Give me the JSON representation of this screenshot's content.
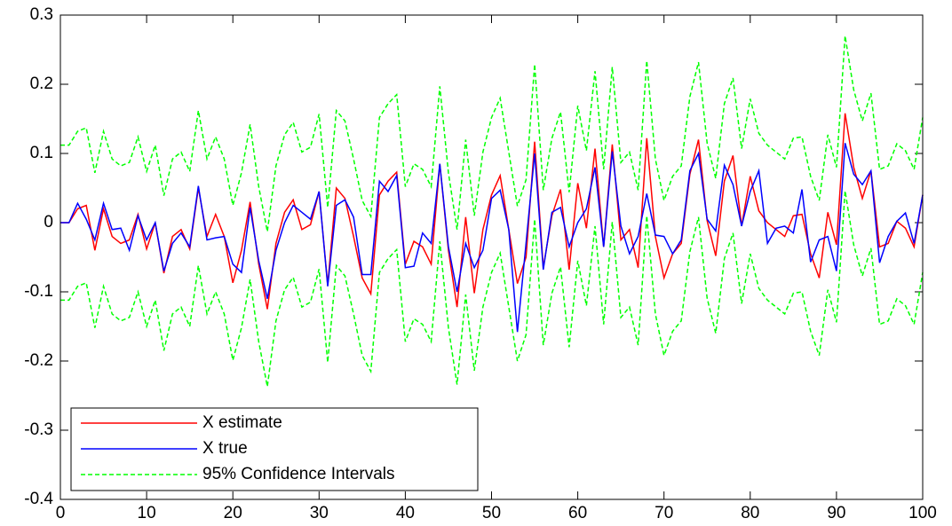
{
  "chart_data": {
    "type": "line",
    "x": [
      0,
      1,
      2,
      3,
      4,
      5,
      6,
      7,
      8,
      9,
      10,
      11,
      12,
      13,
      14,
      15,
      16,
      17,
      18,
      19,
      20,
      21,
      22,
      23,
      24,
      25,
      26,
      27,
      28,
      29,
      30,
      31,
      32,
      33,
      34,
      35,
      36,
      37,
      38,
      39,
      40,
      41,
      42,
      43,
      44,
      45,
      46,
      47,
      48,
      49,
      50,
      51,
      52,
      53,
      54,
      55,
      56,
      57,
      58,
      59,
      60,
      61,
      62,
      63,
      64,
      65,
      66,
      67,
      68,
      69,
      70,
      71,
      72,
      73,
      74,
      75,
      76,
      77,
      78,
      79,
      80,
      81,
      82,
      83,
      84,
      85,
      86,
      87,
      88,
      89,
      90,
      91,
      92,
      93,
      94,
      95,
      96,
      97,
      98,
      99,
      100
    ],
    "xlim": [
      0,
      100
    ],
    "xticks": [
      0,
      10,
      20,
      30,
      40,
      50,
      60,
      70,
      80,
      90,
      100
    ],
    "ylim": [
      -0.4,
      0.3
    ],
    "yticks": [
      -0.4,
      -0.3,
      -0.2,
      -0.1,
      0,
      0.1,
      0.2,
      0.3
    ],
    "grid": false,
    "legend": "lower-left",
    "series": [
      {
        "name": "X estimate",
        "color": "#ff0000",
        "style": "solid",
        "values": [
          0,
          0,
          0.02,
          0.025,
          -0.04,
          0.02,
          -0.02,
          -0.03,
          -0.025,
          0.012,
          -0.038,
          0,
          -0.073,
          -0.02,
          -0.01,
          -0.038,
          0.05,
          -0.02,
          0.012,
          -0.02,
          -0.087,
          -0.04,
          0.03,
          -0.06,
          -0.125,
          -0.03,
          0.015,
          0.033,
          -0.01,
          -0.003,
          0.045,
          -0.09,
          0.05,
          0.035,
          -0.02,
          -0.08,
          -0.103,
          0.04,
          0.06,
          0.073,
          -0.06,
          -0.027,
          -0.035,
          -0.06,
          0.085,
          -0.04,
          -0.122,
          0.008,
          -0.102,
          -0.01,
          0.04,
          0.068,
          -0.01,
          -0.088,
          -0.05,
          0.117,
          -0.065,
          0.01,
          0.048,
          -0.068,
          0.057,
          -0.008,
          0.107,
          -0.035,
          0.113,
          -0.025,
          -0.01,
          -0.065,
          0.122,
          -0.02,
          -0.08,
          -0.045,
          -0.03,
          0.07,
          0.12,
          0.003,
          -0.048,
          0.06,
          0.097,
          -0.005,
          0.067,
          0.017,
          0,
          -0.01,
          -0.02,
          0.01,
          0.012,
          -0.045,
          -0.08,
          0.015,
          -0.032,
          0.158,
          0.08,
          0.035,
          0.075,
          -0.035,
          -0.03,
          0.002,
          -0.008,
          -0.035,
          0.04
        ]
      },
      {
        "name": "X true",
        "color": "#0000ff",
        "style": "solid",
        "values": [
          0,
          0,
          0.028,
          0.005,
          -0.025,
          0.028,
          -0.01,
          -0.008,
          -0.04,
          0.01,
          -0.025,
          0,
          -0.07,
          -0.03,
          -0.015,
          -0.035,
          0.053,
          -0.025,
          -0.022,
          -0.02,
          -0.06,
          -0.072,
          0.022,
          -0.055,
          -0.11,
          -0.04,
          0,
          0.025,
          0.015,
          0.005,
          0.045,
          -0.092,
          0.025,
          0.033,
          0.008,
          -0.075,
          -0.075,
          0.06,
          0.045,
          0.068,
          -0.065,
          -0.063,
          -0.015,
          -0.03,
          0.085,
          -0.035,
          -0.1,
          -0.03,
          -0.065,
          -0.04,
          0.035,
          0.047,
          -0.01,
          -0.158,
          -0.03,
          0.1,
          -0.068,
          0.015,
          0.022,
          -0.035,
          0,
          0.02,
          0.08,
          -0.035,
          0.103,
          -0.005,
          -0.045,
          -0.02,
          0.042,
          -0.018,
          -0.02,
          -0.045,
          -0.025,
          0.075,
          0.1,
          0.005,
          -0.012,
          0.083,
          0.055,
          -0.005,
          0.045,
          0.075,
          -0.03,
          -0.008,
          -0.005,
          -0.015,
          0.048,
          -0.057,
          -0.025,
          -0.02,
          -0.07,
          0.115,
          0.07,
          0.055,
          0.075,
          -0.058,
          -0.02,
          0.002,
          0.014,
          -0.03,
          0.04
        ]
      },
      {
        "name": "95% Confidence Intervals",
        "color": "#00ff00",
        "style": "dashed",
        "values": [
          0.112,
          0.112,
          0.132,
          0.137,
          0.072,
          0.132,
          0.092,
          0.082,
          0.087,
          0.124,
          0.074,
          0.112,
          0.039,
          0.092,
          0.102,
          0.074,
          0.162,
          0.092,
          0.124,
          0.092,
          0.025,
          0.072,
          0.142,
          0.052,
          -0.013,
          0.082,
          0.127,
          0.145,
          0.102,
          0.109,
          0.157,
          0.022,
          0.162,
          0.147,
          0.092,
          0.032,
          0.009,
          0.152,
          0.172,
          0.185,
          0.052,
          0.085,
          0.077,
          0.052,
          0.197,
          0.072,
          -0.01,
          0.12,
          0.01,
          0.102,
          0.152,
          0.18,
          0.102,
          0.024,
          0.062,
          0.229,
          0.047,
          0.122,
          0.16,
          0.044,
          0.169,
          0.104,
          0.219,
          0.077,
          0.225,
          0.087,
          0.102,
          0.047,
          0.234,
          0.092,
          0.032,
          0.067,
          0.082,
          0.182,
          0.232,
          0.115,
          0.064,
          0.172,
          0.209,
          0.107,
          0.179,
          0.129,
          0.112,
          0.102,
          0.092,
          0.122,
          0.124,
          0.067,
          0.032,
          0.127,
          0.08,
          0.27,
          0.192,
          0.147,
          0.187,
          0.077,
          0.082,
          0.114,
          0.104,
          0.077,
          0.152
        ],
        "lower": [
          -0.112,
          -0.112,
          -0.092,
          -0.087,
          -0.152,
          -0.092,
          -0.132,
          -0.142,
          -0.137,
          -0.1,
          -0.15,
          -0.112,
          -0.185,
          -0.132,
          -0.122,
          -0.15,
          -0.062,
          -0.132,
          -0.1,
          -0.132,
          -0.199,
          -0.152,
          -0.082,
          -0.172,
          -0.237,
          -0.142,
          -0.097,
          -0.079,
          -0.122,
          -0.115,
          -0.067,
          -0.202,
          -0.062,
          -0.077,
          -0.132,
          -0.192,
          -0.215,
          -0.072,
          -0.052,
          -0.039,
          -0.172,
          -0.139,
          -0.147,
          -0.172,
          -0.027,
          -0.152,
          -0.234,
          -0.104,
          -0.214,
          -0.122,
          -0.072,
          -0.044,
          -0.122,
          -0.2,
          -0.162,
          0.005,
          -0.177,
          -0.102,
          -0.064,
          -0.18,
          -0.055,
          -0.12,
          -0.005,
          -0.147,
          0.001,
          -0.137,
          -0.122,
          -0.177,
          0.01,
          -0.132,
          -0.192,
          -0.157,
          -0.142,
          -0.042,
          0.008,
          -0.109,
          -0.16,
          -0.052,
          -0.015,
          -0.117,
          -0.045,
          -0.095,
          -0.112,
          -0.122,
          -0.132,
          -0.102,
          -0.1,
          -0.157,
          -0.192,
          -0.097,
          -0.144,
          0.046,
          -0.032,
          -0.077,
          -0.037,
          -0.147,
          -0.142,
          -0.11,
          -0.12,
          -0.147,
          -0.072
        ]
      }
    ]
  }
}
